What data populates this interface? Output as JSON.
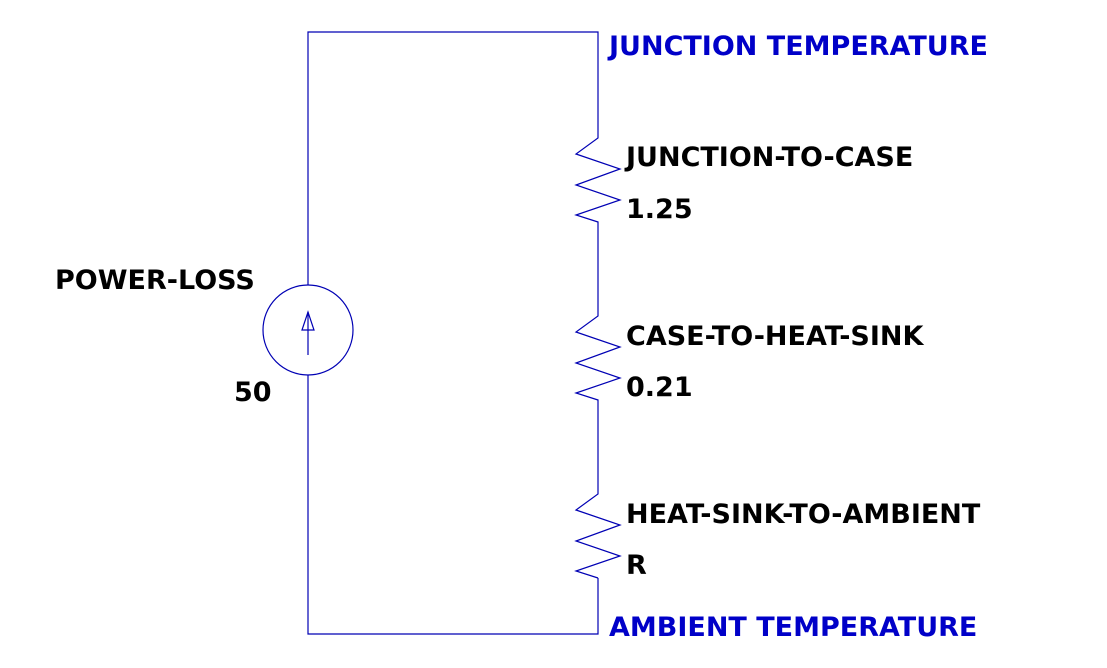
{
  "colors": {
    "wire": "#0000b4",
    "net_label": "#0000c8",
    "component_label": "#000000",
    "background": "#ffffff"
  },
  "net_labels": {
    "top": "JUNCTION TEMPERATURE",
    "bottom": "AMBIENT TEMPERATURE"
  },
  "source": {
    "name": "POWER-LOSS",
    "value": "50",
    "icon": "current-source-up-arrow"
  },
  "resistors": [
    {
      "name": "JUNCTION-TO-CASE",
      "value": "1.25"
    },
    {
      "name": "CASE-TO-HEAT-SINK",
      "value": "0.21"
    },
    {
      "name": "HEAT-SINK-TO-AMBIENT",
      "value": "R"
    }
  ]
}
